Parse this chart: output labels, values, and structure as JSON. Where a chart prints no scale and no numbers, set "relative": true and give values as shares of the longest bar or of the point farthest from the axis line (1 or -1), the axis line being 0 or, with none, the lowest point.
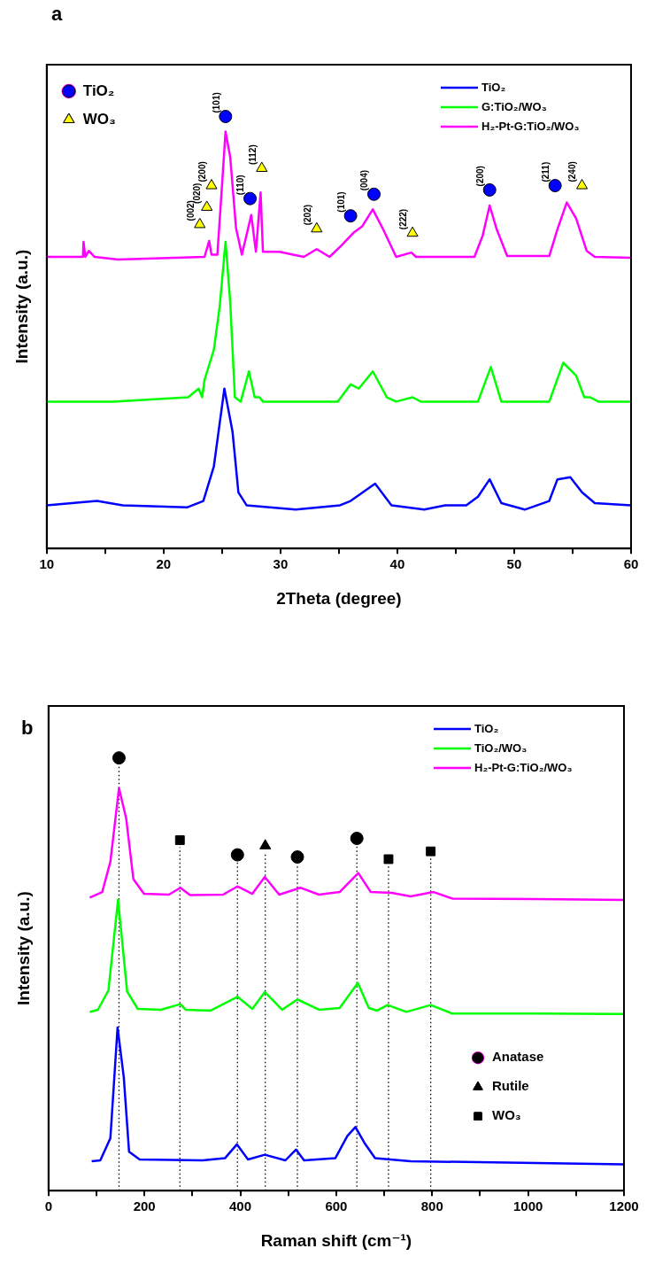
{
  "chart_data": [
    {
      "type": "line",
      "title": "a",
      "xlabel": "2Theta (degree)",
      "ylabel": "Intensity (a.u.)",
      "relative": true,
      "legend": "top right",
      "xlim": [
        10,
        60
      ],
      "xticks": [
        10,
        {
          "value": 15,
          "label": null
        },
        20,
        {
          "value": 25,
          "label": null
        },
        30,
        {
          "value": 35,
          "label": null
        },
        40,
        {
          "value": 45,
          "label": null
        },
        50,
        {
          "value": 55,
          "label": null
        },
        60
      ],
      "series": [
        {
          "name": "TiO₂",
          "color": "#0000ff",
          "x": [
            10,
            14.3,
            16.5,
            22.0,
            23.4,
            24.3,
            25.2,
            25.9,
            26.4,
            27.1,
            31.3,
            35.1,
            36.0,
            38.1,
            39.5,
            42.3,
            44.1,
            45.9,
            46.9,
            47.9,
            48.9,
            50.9,
            53.0,
            53.7,
            54.8,
            55.8,
            56.9,
            60
          ],
          "values": [
            0.1,
            0.11,
            0.1,
            0.095,
            0.11,
            0.19,
            0.37,
            0.27,
            0.13,
            0.1,
            0.09,
            0.1,
            0.11,
            0.15,
            0.1,
            0.09,
            0.1,
            0.1,
            0.12,
            0.16,
            0.105,
            0.09,
            0.11,
            0.16,
            0.165,
            0.13,
            0.105,
            0.1
          ]
        },
        {
          "name": "G:TiO₂/WO₃",
          "color": "#00ff00",
          "x": [
            10,
            15.7,
            22.1,
            23.0,
            23.3,
            23.5,
            24.3,
            24.8,
            25.3,
            25.7,
            26.1,
            26.6,
            27.3,
            27.8,
            28.2,
            28.5,
            34.9,
            36.0,
            36.7,
            37.9,
            39.1,
            39.9,
            41.3,
            42.0,
            46.9,
            48.0,
            48.9,
            53.0,
            54.2,
            55.3,
            56.0,
            56.5,
            57.2,
            60
          ],
          "values": [
            0.34,
            0.34,
            0.35,
            0.37,
            0.35,
            0.39,
            0.46,
            0.56,
            0.71,
            0.57,
            0.35,
            0.34,
            0.41,
            0.35,
            0.35,
            0.34,
            0.34,
            0.38,
            0.37,
            0.41,
            0.35,
            0.34,
            0.35,
            0.34,
            0.34,
            0.42,
            0.34,
            0.34,
            0.43,
            0.4,
            0.35,
            0.35,
            0.34,
            0.34
          ]
        },
        {
          "name": "H₂-Pt-G:TiO₂/WO₃",
          "color": "#ff00ff",
          "x": [
            10,
            13.1,
            13.15,
            13.3,
            13.6,
            14.1,
            16.1,
            23.5,
            23.9,
            24.1,
            24.6,
            25.0,
            25.3,
            25.7,
            26.2,
            26.7,
            27.5,
            27.9,
            28.3,
            28.5,
            29.9,
            32.0,
            33.1,
            34.2,
            35.2,
            36.3,
            37.0,
            37.9,
            38.8,
            39.9,
            41.2,
            41.6,
            46.6,
            47.3,
            47.9,
            48.5,
            49.4,
            53.0,
            53.7,
            54.5,
            55.3,
            56.2,
            56.9,
            60
          ],
          "values": [
            0.675,
            0.675,
            0.71,
            0.675,
            0.689,
            0.675,
            0.669,
            0.675,
            0.712,
            0.68,
            0.68,
            0.841,
            0.965,
            0.906,
            0.741,
            0.68,
            0.772,
            0.687,
            0.824,
            0.687,
            0.687,
            0.675,
            0.693,
            0.675,
            0.701,
            0.732,
            0.746,
            0.785,
            0.738,
            0.675,
            0.685,
            0.675,
            0.675,
            0.724,
            0.794,
            0.739,
            0.677,
            0.677,
            0.739,
            0.801,
            0.764,
            0.689,
            0.675,
            0.673
          ]
        },
        {
          "type": "scatter",
          "name": "TiO₂",
          "color": "#0000ff",
          "marker": "circle",
          "x": [
            25.3,
            27.4,
            36.0,
            38.0,
            47.9,
            53.5
          ],
          "values": [
            1.0,
            0.81,
            0.77,
            0.82,
            0.83,
            0.84
          ]
        },
        {
          "type": "scatter",
          "name": "WO₃",
          "color": "#ffff00",
          "marker": "triangle",
          "x": [
            23.1,
            23.7,
            24.1,
            28.4,
            33.1,
            41.3,
            55.8
          ],
          "values": [
            0.75,
            0.79,
            0.84,
            0.88,
            0.74,
            0.73,
            0.84
          ]
        }
      ],
      "annotations": [
        {
          "text": "(002)",
          "x": 23.1,
          "y": 0.75
        },
        {
          "text": "(020)",
          "x": 23.7,
          "y": 0.79
        },
        {
          "text": "(200)",
          "x": 24.1,
          "y": 0.84
        },
        {
          "text": "(101)",
          "x": 25.3,
          "y": 1.0
        },
        {
          "text": "(110)",
          "x": 27.4,
          "y": 0.81
        },
        {
          "text": "(112)",
          "x": 28.4,
          "y": 0.88
        },
        {
          "text": "(202)",
          "x": 33.1,
          "y": 0.74
        },
        {
          "text": "(101)",
          "x": 36.0,
          "y": 0.77
        },
        {
          "text": "(004)",
          "x": 38.0,
          "y": 0.82
        },
        {
          "text": "(222)",
          "x": 41.3,
          "y": 0.73
        },
        {
          "text": "(200)",
          "x": 47.9,
          "y": 0.83
        },
        {
          "text": "(211)",
          "x": 53.5,
          "y": 0.84
        },
        {
          "text": "(240)",
          "x": 55.8,
          "y": 0.84
        }
      ]
    },
    {
      "type": "line",
      "title": "b",
      "xlabel": "Raman shift (cm⁻¹)",
      "ylabel": "Intensity (a.u.)",
      "relative": true,
      "legend": "top right",
      "xlim": [
        0,
        1200
      ],
      "xticks": [
        0,
        {
          "value": 100,
          "label": null
        },
        200,
        {
          "value": 300,
          "label": null
        },
        400,
        {
          "value": 500,
          "label": null
        },
        600,
        {
          "value": 700,
          "label": null
        },
        800,
        {
          "value": 900,
          "label": null
        },
        1000,
        {
          "value": 1100,
          "label": null
        },
        1200
      ],
      "series": [
        {
          "name": "TiO₂",
          "color": "#0000ff",
          "x": [
            90,
            108,
            129,
            144,
            157,
            168,
            190,
            321,
            368,
            393,
            416,
            451,
            494,
            516,
            533,
            598,
            623,
            640,
            659,
            681,
            755,
            1200
          ],
          "values": [
            0.068,
            0.07,
            0.121,
            0.377,
            0.262,
            0.09,
            0.072,
            0.07,
            0.075,
            0.107,
            0.072,
            0.083,
            0.07,
            0.095,
            0.07,
            0.075,
            0.126,
            0.147,
            0.11,
            0.075,
            0.068,
            0.061
          ]
        },
        {
          "name": "TiO₂/WO₃",
          "color": "#00ff00",
          "x": [
            86,
            103,
            125,
            145,
            164,
            186,
            234,
            275,
            286,
            338,
            394,
            425,
            451,
            487,
            519,
            564,
            607,
            645,
            668,
            685,
            707,
            746,
            797,
            842,
            1015,
            1200
          ],
          "values": [
            0.413,
            0.418,
            0.463,
            0.672,
            0.46,
            0.42,
            0.418,
            0.431,
            0.418,
            0.416,
            0.448,
            0.42,
            0.459,
            0.418,
            0.442,
            0.418,
            0.422,
            0.48,
            0.422,
            0.416,
            0.429,
            0.413,
            0.429,
            0.409,
            0.409,
            0.408
          ]
        },
        {
          "name": "H₂-Pt-G:TiO₂/WO₃",
          "color": "#ff00ff",
          "x": [
            86,
            112,
            129,
            147,
            162,
            177,
            199,
            251,
            275,
            295,
            364,
            394,
            425,
            451,
            481,
            525,
            564,
            607,
            646,
            672,
            716,
            755,
            803,
            842,
            1015,
            1200
          ],
          "values": [
            0.677,
            0.69,
            0.76,
            0.93,
            0.86,
            0.72,
            0.686,
            0.684,
            0.7,
            0.683,
            0.684,
            0.703,
            0.686,
            0.725,
            0.684,
            0.7,
            0.684,
            0.69,
            0.734,
            0.69,
            0.688,
            0.68,
            0.69,
            0.675,
            0.674,
            0.672
          ]
        },
        {
          "type": "scatter",
          "name": "Anatase",
          "color": "#000000",
          "marker": "circle",
          "x": [
            147,
            394,
            519,
            643
          ],
          "values": [
            1.0,
            0.776,
            0.771,
            0.814
          ]
        },
        {
          "type": "scatter",
          "name": "Rutile",
          "color": "#000000",
          "marker": "triangle",
          "x": [
            452
          ],
          "values": [
            0.797
          ]
        },
        {
          "type": "scatter",
          "name": "WO₃",
          "color": "#000000",
          "marker": "square",
          "x": [
            274,
            709,
            797
          ],
          "values": [
            0.81,
            0.766,
            0.784
          ]
        }
      ],
      "ref_lines": [
        {
          "axis": "x",
          "value": 147,
          "line_style": "dotted",
          "color": "#000000"
        },
        {
          "axis": "x",
          "value": 274,
          "line_style": "dotted",
          "color": "#000000"
        },
        {
          "axis": "x",
          "value": 394,
          "line_style": "dotted",
          "color": "#000000"
        },
        {
          "axis": "x",
          "value": 452,
          "line_style": "dotted",
          "color": "#000000"
        },
        {
          "axis": "x",
          "value": 519,
          "line_style": "dotted",
          "color": "#000000"
        },
        {
          "axis": "x",
          "value": 643,
          "line_style": "dotted",
          "color": "#000000"
        },
        {
          "axis": "x",
          "value": 709,
          "line_style": "dotted",
          "color": "#000000"
        },
        {
          "axis": "x",
          "value": 797,
          "line_style": "dotted",
          "color": "#000000"
        }
      ]
    }
  ]
}
